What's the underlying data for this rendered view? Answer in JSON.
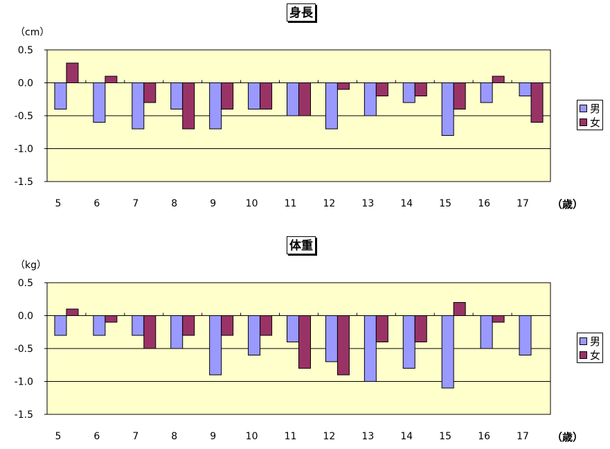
{
  "colors": {
    "male": "#9999ff",
    "female": "#993366",
    "plot_bg": "#ffffcc",
    "grid": "#000000"
  },
  "years_label": "（歳）",
  "legend": {
    "male": "男",
    "female": "女"
  },
  "chart_data": [
    {
      "type": "bar",
      "title": "身長",
      "unit": "（cm）",
      "categories": [
        "5",
        "6",
        "7",
        "8",
        "9",
        "10",
        "11",
        "12",
        "13",
        "14",
        "15",
        "16",
        "17"
      ],
      "yticks": [
        "0.5",
        "0.0",
        "-0.5",
        "-1.0",
        "-1.5"
      ],
      "ylim": [
        -1.5,
        0.5
      ],
      "grid": true,
      "legend_position": "right",
      "series": [
        {
          "name": "男",
          "values": [
            -0.4,
            -0.6,
            -0.7,
            -0.4,
            -0.7,
            -0.4,
            -0.5,
            -0.7,
            -0.5,
            -0.3,
            -0.8,
            -0.3,
            -0.2
          ]
        },
        {
          "name": "女",
          "values": [
            0.3,
            0.1,
            -0.3,
            -0.7,
            -0.4,
            -0.4,
            -0.5,
            -0.1,
            -0.2,
            -0.2,
            -0.4,
            0.1,
            -0.6
          ]
        }
      ]
    },
    {
      "type": "bar",
      "title": "体重",
      "unit": "（kg）",
      "categories": [
        "5",
        "6",
        "7",
        "8",
        "9",
        "10",
        "11",
        "12",
        "13",
        "14",
        "15",
        "16",
        "17"
      ],
      "yticks": [
        "0.5",
        "0.0",
        "-0.5",
        "-1.0",
        "-1.5"
      ],
      "ylim": [
        -1.5,
        0.5
      ],
      "grid": true,
      "legend_position": "right",
      "series": [
        {
          "name": "男",
          "values": [
            -0.3,
            -0.3,
            -0.3,
            -0.5,
            -0.9,
            -0.6,
            -0.4,
            -0.7,
            -1.0,
            -0.8,
            -1.1,
            -0.5,
            -0.6
          ]
        },
        {
          "name": "女",
          "values": [
            0.1,
            -0.1,
            -0.5,
            -0.3,
            -0.3,
            -0.3,
            -0.8,
            -0.9,
            -0.4,
            -0.4,
            0.2,
            -0.1,
            0.0
          ]
        }
      ]
    }
  ]
}
